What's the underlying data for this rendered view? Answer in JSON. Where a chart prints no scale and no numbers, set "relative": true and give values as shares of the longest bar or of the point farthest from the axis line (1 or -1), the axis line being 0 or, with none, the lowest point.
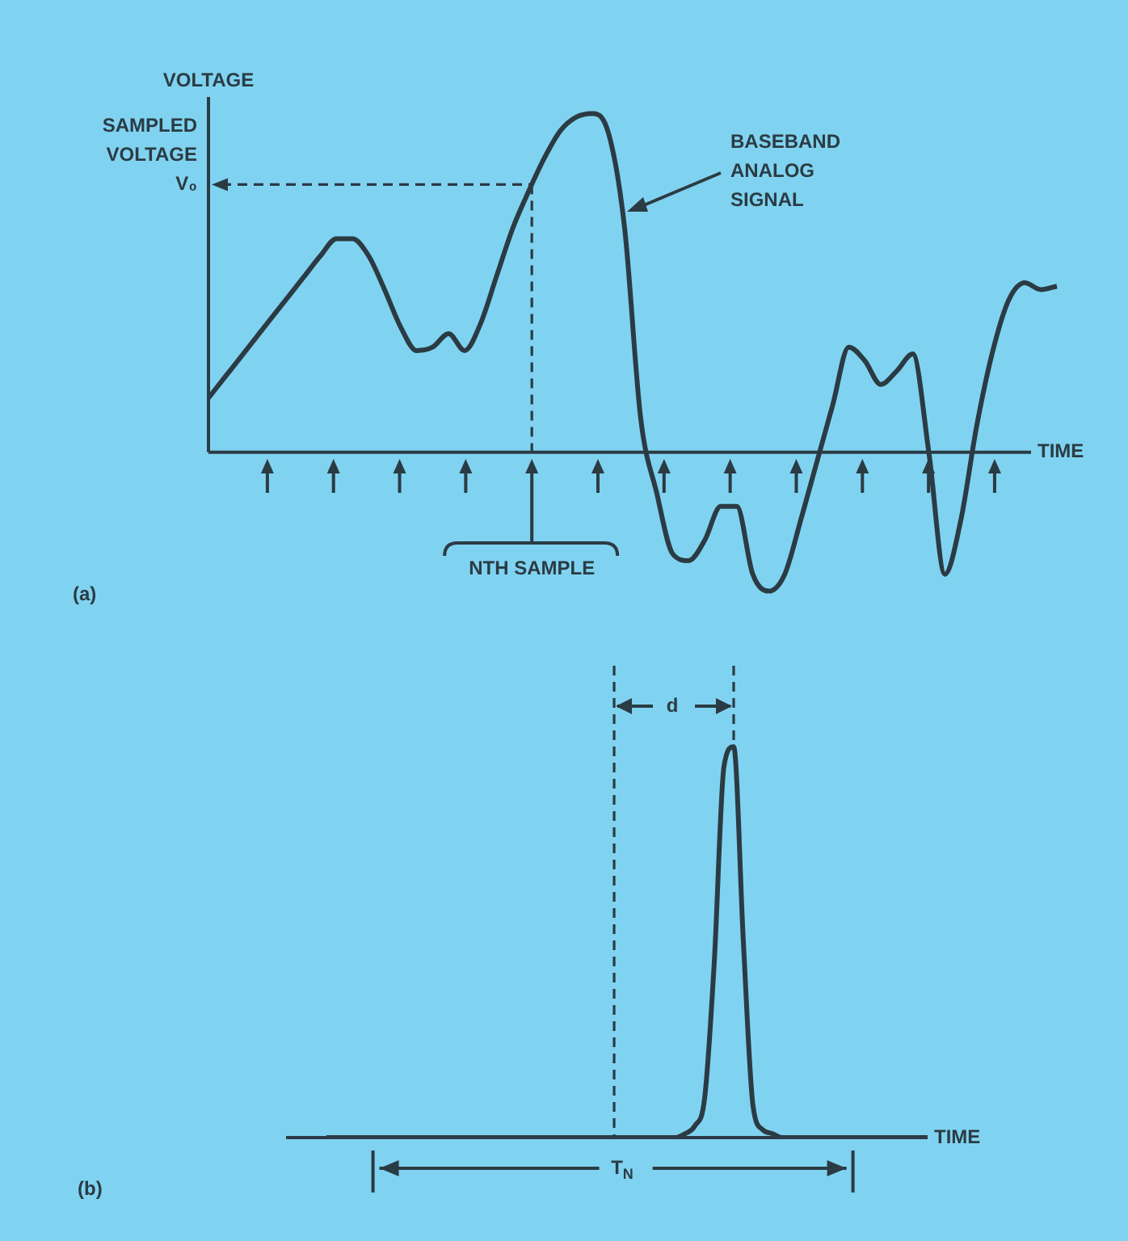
{
  "chart_data": [
    {
      "type": "line",
      "relative": true,
      "xlabel": "TIME",
      "ylabel": "VOLTAGE",
      "color": "#2b3b44",
      "categories": [
        null,
        null,
        null,
        null,
        null,
        null,
        null,
        null,
        null,
        null,
        null,
        null,
        null,
        null,
        null,
        null,
        null,
        null,
        null,
        null,
        null,
        null,
        null,
        null,
        null,
        null,
        null,
        null,
        null,
        null,
        null,
        null,
        null,
        null,
        null,
        null,
        null,
        null,
        null,
        null,
        null,
        null,
        null,
        null,
        null,
        null,
        null,
        null,
        null,
        null,
        null,
        null,
        null,
        null
      ],
      "values": [
        0.16,
        0.22,
        0.28,
        0.34,
        0.4,
        0.46,
        0.52,
        0.58,
        0.63,
        0.63,
        0.58,
        0.48,
        0.37,
        0.3,
        0.31,
        0.35,
        0.3,
        0.38,
        0.52,
        0.66,
        0.77,
        0.87,
        0.95,
        0.99,
        1.0,
        0.94,
        0.66,
        0.1,
        -0.12,
        -0.3,
        -0.32,
        -0.26,
        -0.16,
        -0.16,
        -0.36,
        -0.41,
        -0.36,
        -0.2,
        -0.03,
        0.14,
        0.31,
        0.27,
        0.2,
        0.24,
        0.29,
        0.0,
        -0.36,
        -0.2,
        0.08,
        0.3,
        0.45,
        0.5,
        0.48,
        0.49
      ],
      "ref_lines": [
        {
          "axis": "y",
          "value": 0.79,
          "label": "SAMPLED VOLTAGE V₀",
          "line_style": "dashed"
        }
      ],
      "annotations": [
        "BASEBAND ANALOG SIGNAL",
        "NTH SAMPLE",
        "(a)"
      ]
    },
    {
      "type": "line",
      "relative": true,
      "xlabel": "TIME",
      "color": "#2b3b44",
      "categories": [
        null,
        null,
        null,
        null,
        null,
        null,
        null,
        null,
        null,
        null,
        null,
        null,
        null,
        null,
        null,
        null,
        null,
        null,
        null,
        null,
        null,
        null,
        null,
        null,
        null,
        null,
        null,
        null,
        null,
        null,
        null,
        null,
        null,
        null,
        null,
        null,
        null,
        null,
        null,
        null,
        null,
        null,
        null,
        null,
        null,
        null,
        null,
        null,
        null,
        null,
        null,
        null,
        null,
        null,
        null,
        null,
        null,
        null,
        null,
        null,
        null,
        null,
        null
      ],
      "values": [
        0,
        0,
        0,
        0,
        0,
        0,
        0,
        0,
        0,
        0,
        0,
        0,
        0,
        0,
        0,
        0,
        0,
        0,
        0,
        0,
        0,
        0,
        0,
        0,
        0,
        0,
        0,
        0,
        0,
        0,
        0,
        0,
        0,
        0,
        0,
        0,
        0,
        0.01,
        0.03,
        0.1,
        0.45,
        0.95,
        1.0,
        0.5,
        0.08,
        0.02,
        0.01,
        0,
        0,
        0,
        0,
        0,
        0,
        0,
        0,
        0,
        0,
        0,
        0,
        0,
        0,
        0,
        0
      ],
      "annotations": [
        "d",
        "T$_{N}$",
        "(b)"
      ]
    }
  ]
}
